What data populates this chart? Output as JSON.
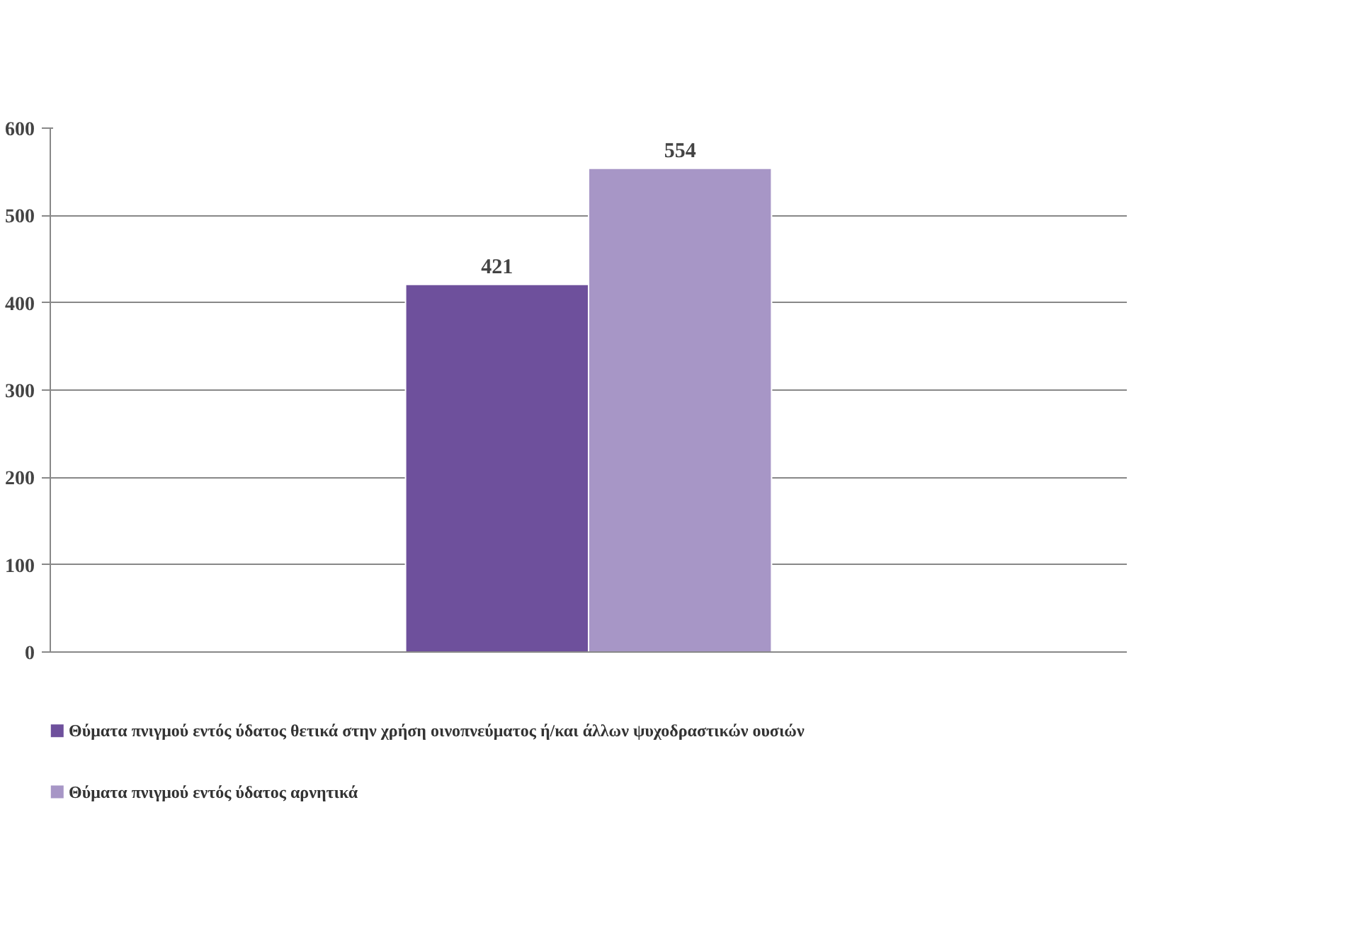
{
  "chart_data": {
    "type": "bar",
    "categories": [
      null
    ],
    "series": [
      {
        "name": "Θύματα πνιγμού εντός ύδατος θετικά στην χρήση οινοπνεύματος ή/και άλλων ψυχοδραστικών ουσιών",
        "color": "#6e509c",
        "values": [
          421
        ]
      },
      {
        "name": "Θύματα πνιγμού εντός ύδατος αρνητικά",
        "color": "#a796c6",
        "values": [
          554
        ]
      }
    ],
    "ylim": [
      0,
      600
    ],
    "yticks": [
      0,
      100,
      200,
      300,
      400,
      500,
      600
    ],
    "grid": "y",
    "legend": "bottom",
    "data_labels": true
  }
}
